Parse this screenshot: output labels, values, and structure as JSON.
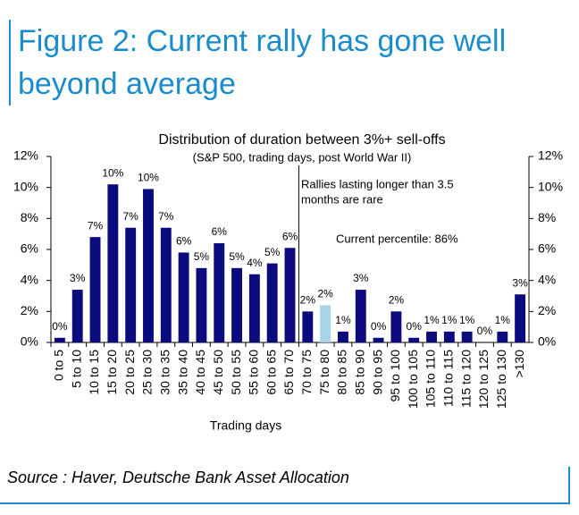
{
  "figure_title": "Figure 2: Current rally has gone well beyond average",
  "source": "Source : Haver, Deutsche Bank Asset Allocation",
  "chart_data": {
    "type": "bar",
    "title": "Distribution of duration between 3%+ sell-offs",
    "subtitle": "(S&P 500, trading days, post World War II)",
    "x_label": "Trading days",
    "annotations": [
      "Rallies lasting longer than 3.5",
      "months are rare",
      "Current percentile: 86%"
    ],
    "categories": [
      "0 to 5",
      "5 to 10",
      "10 to 15",
      "15 to 20",
      "20 to 25",
      "25 to 30",
      "30 to 35",
      "35 to 40",
      "40 to 45",
      "45 to 50",
      "50 to 55",
      "55 to 60",
      "60 to 65",
      "65 to 70",
      "70 to 75",
      "75 to 80",
      "80 to 85",
      "85 to 90",
      "90 to 95",
      "95 to 100",
      "100 to 105",
      "105 to 110",
      "110 to 115",
      "115 to 120",
      "120 to 125",
      "125 to 130",
      ">130"
    ],
    "values": [
      0.3,
      3.4,
      6.8,
      10.2,
      7.4,
      9.9,
      7.4,
      5.8,
      4.8,
      6.4,
      4.8,
      4.4,
      5.1,
      6.1,
      2.0,
      2.4,
      0.7,
      3.4,
      0.3,
      2.0,
      0.3,
      0.7,
      0.7,
      0.7,
      0,
      0.7,
      3.1
    ],
    "value_labels": [
      "0%",
      "3%",
      "7%",
      "10%",
      "7%",
      "10%",
      "7%",
      "6%",
      "5%",
      "6%",
      "5%",
      "4%",
      "5%",
      "6%",
      "2%",
      "2%",
      "1%",
      "3%",
      "0%",
      "2%",
      "0%",
      "1%",
      "1%",
      "1%",
      "0%",
      "1%",
      "3%"
    ],
    "colors": [
      "#0b0b7e",
      "#0b0b7e",
      "#0b0b7e",
      "#0b0b7e",
      "#0b0b7e",
      "#0b0b7e",
      "#0b0b7e",
      "#0b0b7e",
      "#0b0b7e",
      "#0b0b7e",
      "#0b0b7e",
      "#0b0b7e",
      "#0b0b7e",
      "#0b0b7e",
      "#0b0b7e",
      "#a9d4e8",
      "#0b0b7e",
      "#0b0b7e",
      "#0b0b7e",
      "#0b0b7e",
      "#0b0b7e",
      "#0b0b7e",
      "#0b0b7e",
      "#0b0b7e",
      "#0b0b7e",
      "#0b0b7e",
      "#0b0b7e"
    ],
    "ylim": [
      0,
      12
    ],
    "yticks": [
      {
        "value": 0,
        "label": "0%"
      },
      {
        "value": 2,
        "label": "2%"
      },
      {
        "value": 4,
        "label": "4%"
      },
      {
        "value": 6,
        "label": "6%"
      },
      {
        "value": 8,
        "label": "8%"
      },
      {
        "value": 10,
        "label": "10%"
      },
      {
        "value": 12,
        "label": "12%"
      }
    ],
    "y2lim": [
      0,
      12
    ],
    "y2ticks": [
      {
        "value": 0,
        "label": "0%"
      },
      {
        "value": 2,
        "label": "2%"
      },
      {
        "value": 4,
        "label": "4%"
      },
      {
        "value": 6,
        "label": "6%"
      },
      {
        "value": 8,
        "label": "8%"
      },
      {
        "value": 10,
        "label": "10%"
      },
      {
        "value": 12,
        "label": "12%"
      }
    ]
  }
}
